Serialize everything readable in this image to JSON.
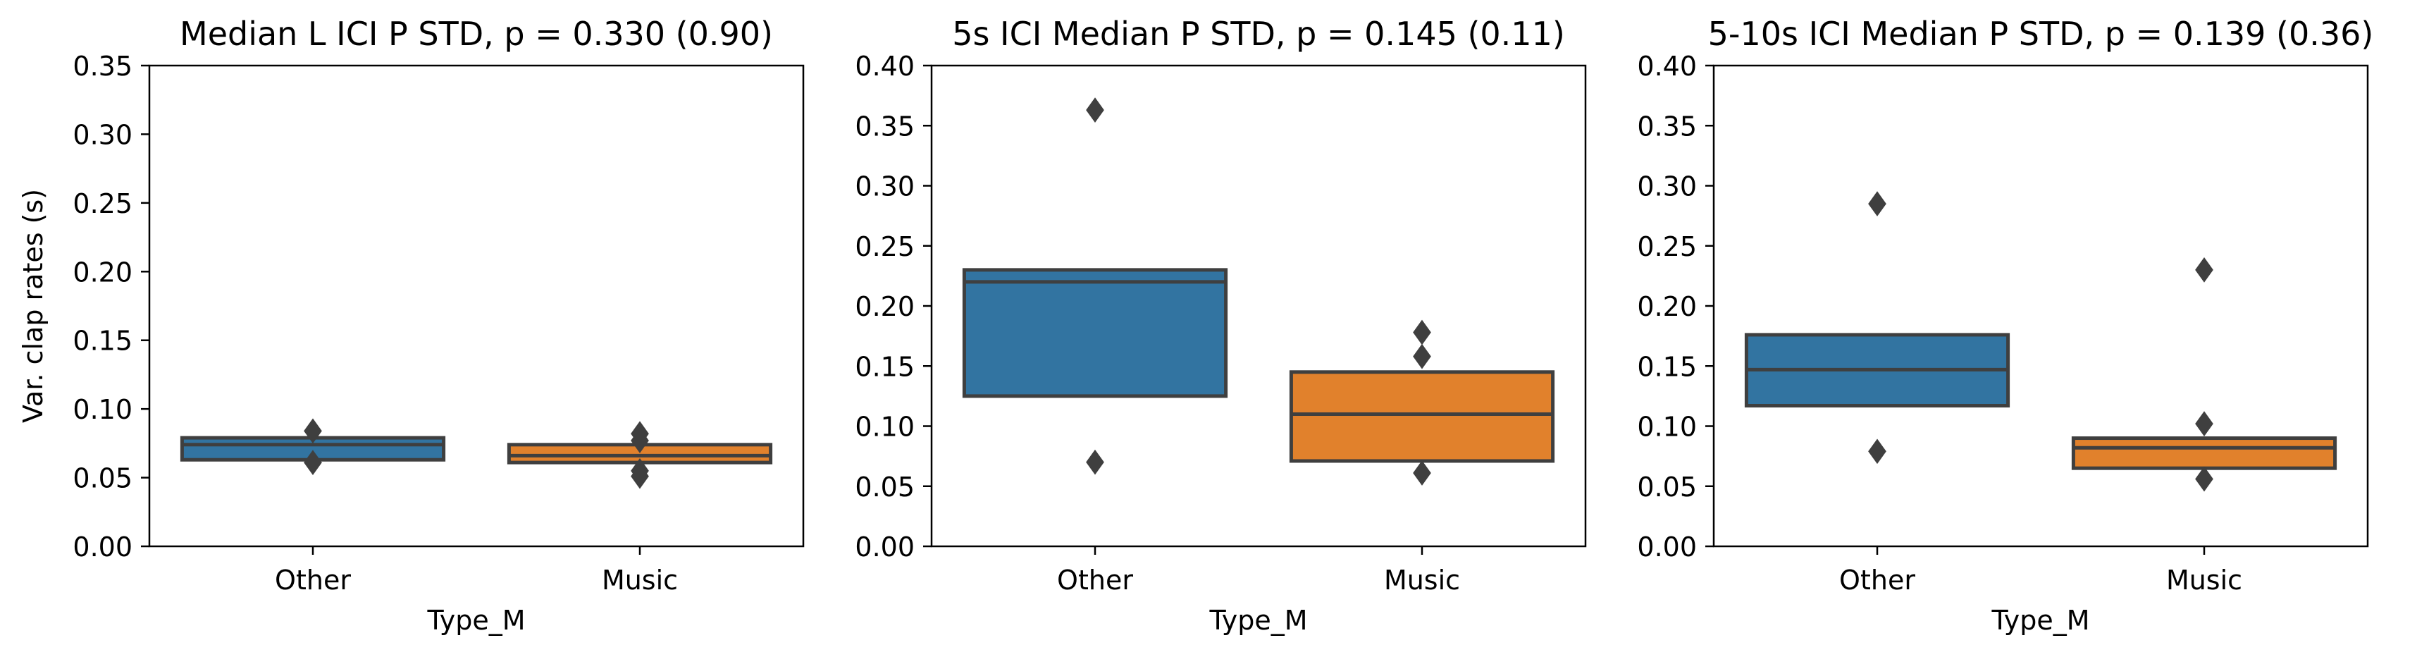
{
  "chart_data": [
    {
      "type": "boxplot",
      "title": "Median L ICI P STD, p = 0.330 (0.90)",
      "xlabel": "Type_M",
      "ylabel": "Var. clap rates (s)",
      "ylim": [
        0,
        0.35
      ],
      "yticks": [
        "0.00",
        "0.05",
        "0.10",
        "0.15",
        "0.20",
        "0.25",
        "0.30",
        "0.35"
      ],
      "categories": [
        "Other",
        "Music"
      ],
      "boxes": [
        {
          "category": "Other",
          "color": "#3274a1",
          "q1": 0.063,
          "median": 0.074,
          "q3": 0.079,
          "outliers": [
            0.084,
            0.061
          ]
        },
        {
          "category": "Music",
          "color": "#e1812c",
          "q1": 0.061,
          "median": 0.066,
          "q3": 0.074,
          "outliers": [
            0.082,
            0.077,
            0.055,
            0.051
          ]
        }
      ]
    },
    {
      "type": "boxplot",
      "title": "5s ICI Median P STD, p = 0.145 (0.11)",
      "xlabel": "Type_M",
      "ylabel": "",
      "ylim": [
        0,
        0.4
      ],
      "yticks": [
        "0.00",
        "0.05",
        "0.10",
        "0.15",
        "0.20",
        "0.25",
        "0.30",
        "0.35",
        "0.40"
      ],
      "categories": [
        "Other",
        "Music"
      ],
      "boxes": [
        {
          "category": "Other",
          "color": "#3274a1",
          "q1": 0.125,
          "median": 0.22,
          "q3": 0.23,
          "outliers": [
            0.363,
            0.07
          ]
        },
        {
          "category": "Music",
          "color": "#e1812c",
          "q1": 0.071,
          "median": 0.11,
          "q3": 0.145,
          "outliers": [
            0.178,
            0.158,
            0.061
          ]
        }
      ]
    },
    {
      "type": "boxplot",
      "title": "5-10s ICI Median P STD, p = 0.139 (0.36)",
      "xlabel": "Type_M",
      "ylabel": "",
      "ylim": [
        0,
        0.4
      ],
      "yticks": [
        "0.00",
        "0.05",
        "0.10",
        "0.15",
        "0.20",
        "0.25",
        "0.30",
        "0.35",
        "0.40"
      ],
      "categories": [
        "Other",
        "Music"
      ],
      "boxes": [
        {
          "category": "Other",
          "color": "#3274a1",
          "q1": 0.117,
          "median": 0.147,
          "q3": 0.176,
          "outliers": [
            0.285,
            0.079
          ]
        },
        {
          "category": "Music",
          "color": "#e1812c",
          "q1": 0.065,
          "median": 0.082,
          "q3": 0.09,
          "outliers": [
            0.23,
            0.102,
            0.056
          ]
        }
      ]
    }
  ]
}
